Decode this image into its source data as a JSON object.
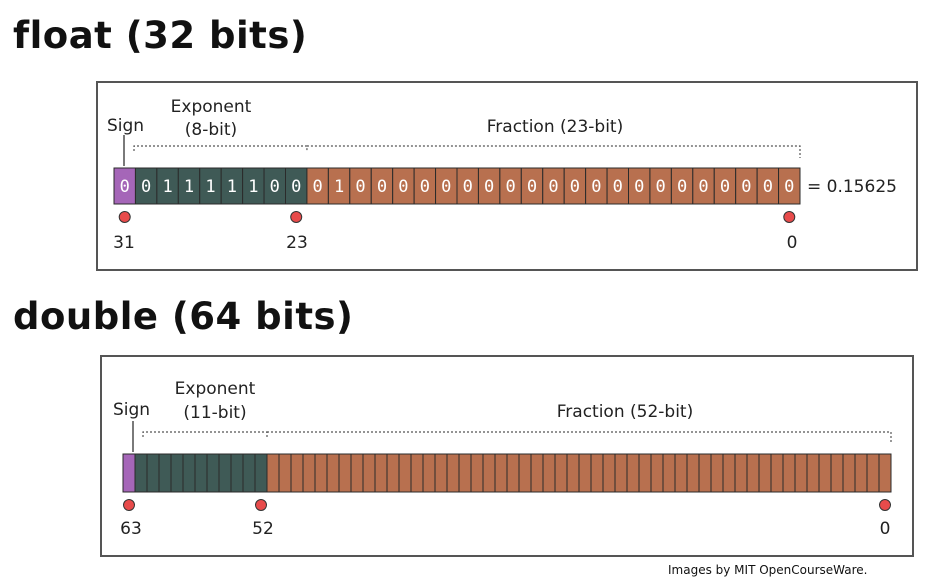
{
  "float": {
    "title": "float (32 bits)",
    "sign_label": "Sign",
    "exponent_label_line1": "Exponent",
    "exponent_label_line2": "(8-bit)",
    "fraction_label": "Fraction (23-bit)",
    "bits": [
      "0",
      "0",
      "1",
      "1",
      "1",
      "1",
      "1",
      "0",
      "0",
      "0",
      "1",
      "0",
      "0",
      "0",
      "0",
      "0",
      "0",
      "0",
      "0",
      "0",
      "0",
      "0",
      "0",
      "0",
      "0",
      "0",
      "0",
      "0",
      "0",
      "0",
      "0",
      "0"
    ],
    "sign_bits": 1,
    "exponent_bits": 8,
    "fraction_bits": 23,
    "result": "= 0.15625",
    "markers": [
      "31",
      "23",
      "0"
    ]
  },
  "double": {
    "title": "double (64 bits)",
    "sign_label": "Sign",
    "exponent_label_line1": "Exponent",
    "exponent_label_line2": "(11-bit)",
    "fraction_label": "Fraction (52-bit)",
    "sign_bits": 1,
    "exponent_bits": 11,
    "fraction_bits": 52,
    "markers": [
      "63",
      "52",
      "0"
    ]
  },
  "colors": {
    "sign": "#a566b8",
    "exponent": "#3f5a56",
    "fraction": "#b8704f",
    "marker": "#e84b4b"
  },
  "credit": "Images by MIT OpenCourseWare."
}
